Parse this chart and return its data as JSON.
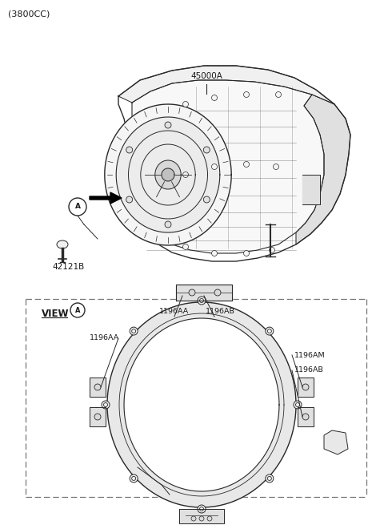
{
  "bg_color": "#ffffff",
  "line_color": "#2a2a2a",
  "text_color": "#1a1a1a",
  "title_text": "(3800CC)",
  "label_45000A": "45000A",
  "label_42121B": "42121B",
  "label_1196AA_top": "1196AA",
  "label_1196AB_top": "1196AB",
  "label_1196AA_left": "1196AA",
  "label_1196AM": "1196AM",
  "label_1196AB_right": "1196AB",
  "view_label": "VIEW"
}
